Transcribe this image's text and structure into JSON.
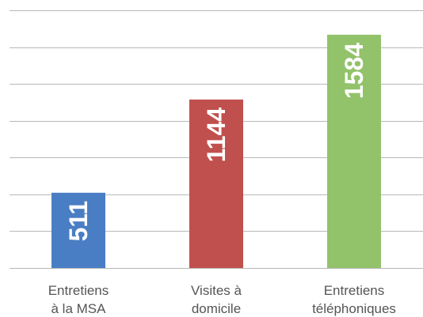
{
  "chart_data": {
    "type": "bar",
    "categories": [
      [
        "Entretiens",
        "à la MSA"
      ],
      [
        "Visites à",
        "domicile"
      ],
      [
        "Entretiens",
        "téléphoniques"
      ]
    ],
    "values": [
      511,
      1144,
      1584
    ],
    "data_labels": [
      "511",
      "1144",
      "1584"
    ],
    "colors": [
      "#4a7ec4",
      "#c0504d",
      "#92c26a"
    ],
    "gridline_color": "#b8b8b8",
    "label_color": "#555555",
    "title": "",
    "xlabel": "",
    "ylabel": "",
    "ylim": [
      0,
      1750
    ],
    "grid": true,
    "legend": "none"
  }
}
